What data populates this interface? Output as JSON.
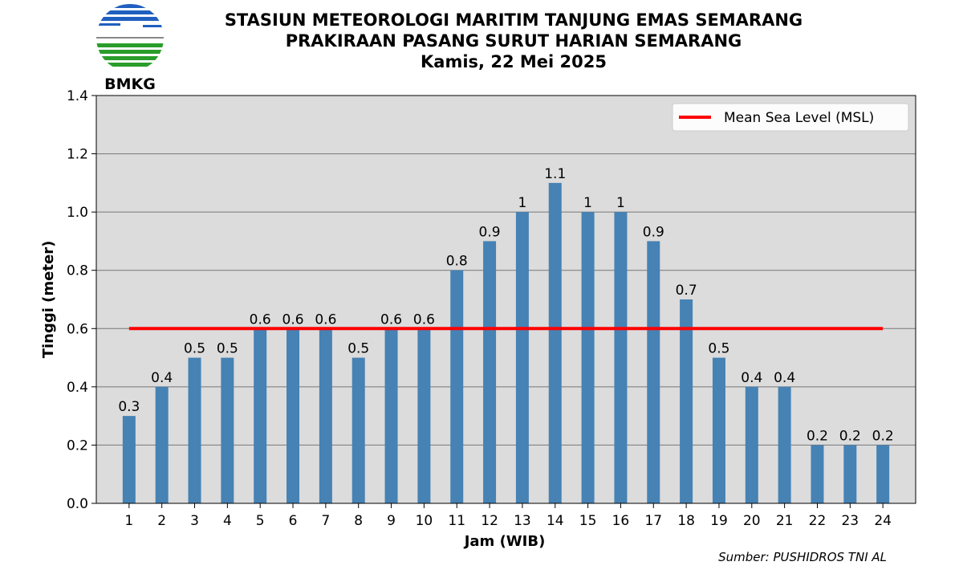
{
  "header": {
    "logo_text": "BMKG",
    "title_line1": "STASIUN METEOROLOGI MARITIM TANJUNG EMAS SEMARANG",
    "title_line2": "PRAKIRAAN PASANG SURUT HARIAN SEMARANG",
    "title_line3": "Kamis, 22 Mei 2025"
  },
  "source_note": "Sumber: PUSHIDROS TNI AL",
  "chart_data": {
    "type": "bar",
    "xlabel": "Jam (WIB)",
    "ylabel": "Tinggi (meter)",
    "categories": [
      "1",
      "2",
      "3",
      "4",
      "5",
      "6",
      "7",
      "8",
      "9",
      "10",
      "11",
      "12",
      "13",
      "14",
      "15",
      "16",
      "17",
      "18",
      "19",
      "20",
      "21",
      "22",
      "23",
      "24"
    ],
    "values": [
      0.3,
      0.4,
      0.5,
      0.5,
      0.6,
      0.6,
      0.6,
      0.5,
      0.6,
      0.6,
      0.8,
      0.9,
      1,
      1.1,
      1,
      1,
      0.9,
      0.7,
      0.5,
      0.4,
      0.4,
      0.2,
      0.2,
      0.2
    ],
    "data_labels": [
      "0.3",
      "0.4",
      "0.5",
      "0.5",
      "0.6",
      "0.6",
      "0.6",
      "0.5",
      "0.6",
      "0.6",
      "0.8",
      "0.9",
      "1",
      "1.1",
      "1",
      "1",
      "0.9",
      "0.7",
      "0.5",
      "0.4",
      "0.4",
      "0.2",
      "0.2",
      "0.2"
    ],
    "ylim": [
      0,
      1.4
    ],
    "yticks": [
      "0.0",
      "0.2",
      "0.4",
      "0.6",
      "0.8",
      "1.0",
      "1.2",
      "1.4"
    ],
    "grid": "horizontal",
    "reference_line": {
      "name": "Mean Sea Level (MSL)",
      "value": 0.6,
      "color": "#ff0000"
    },
    "legend_position": "top-right",
    "bar_color": "#4682b4",
    "plot_background": "#dcdcdc"
  }
}
